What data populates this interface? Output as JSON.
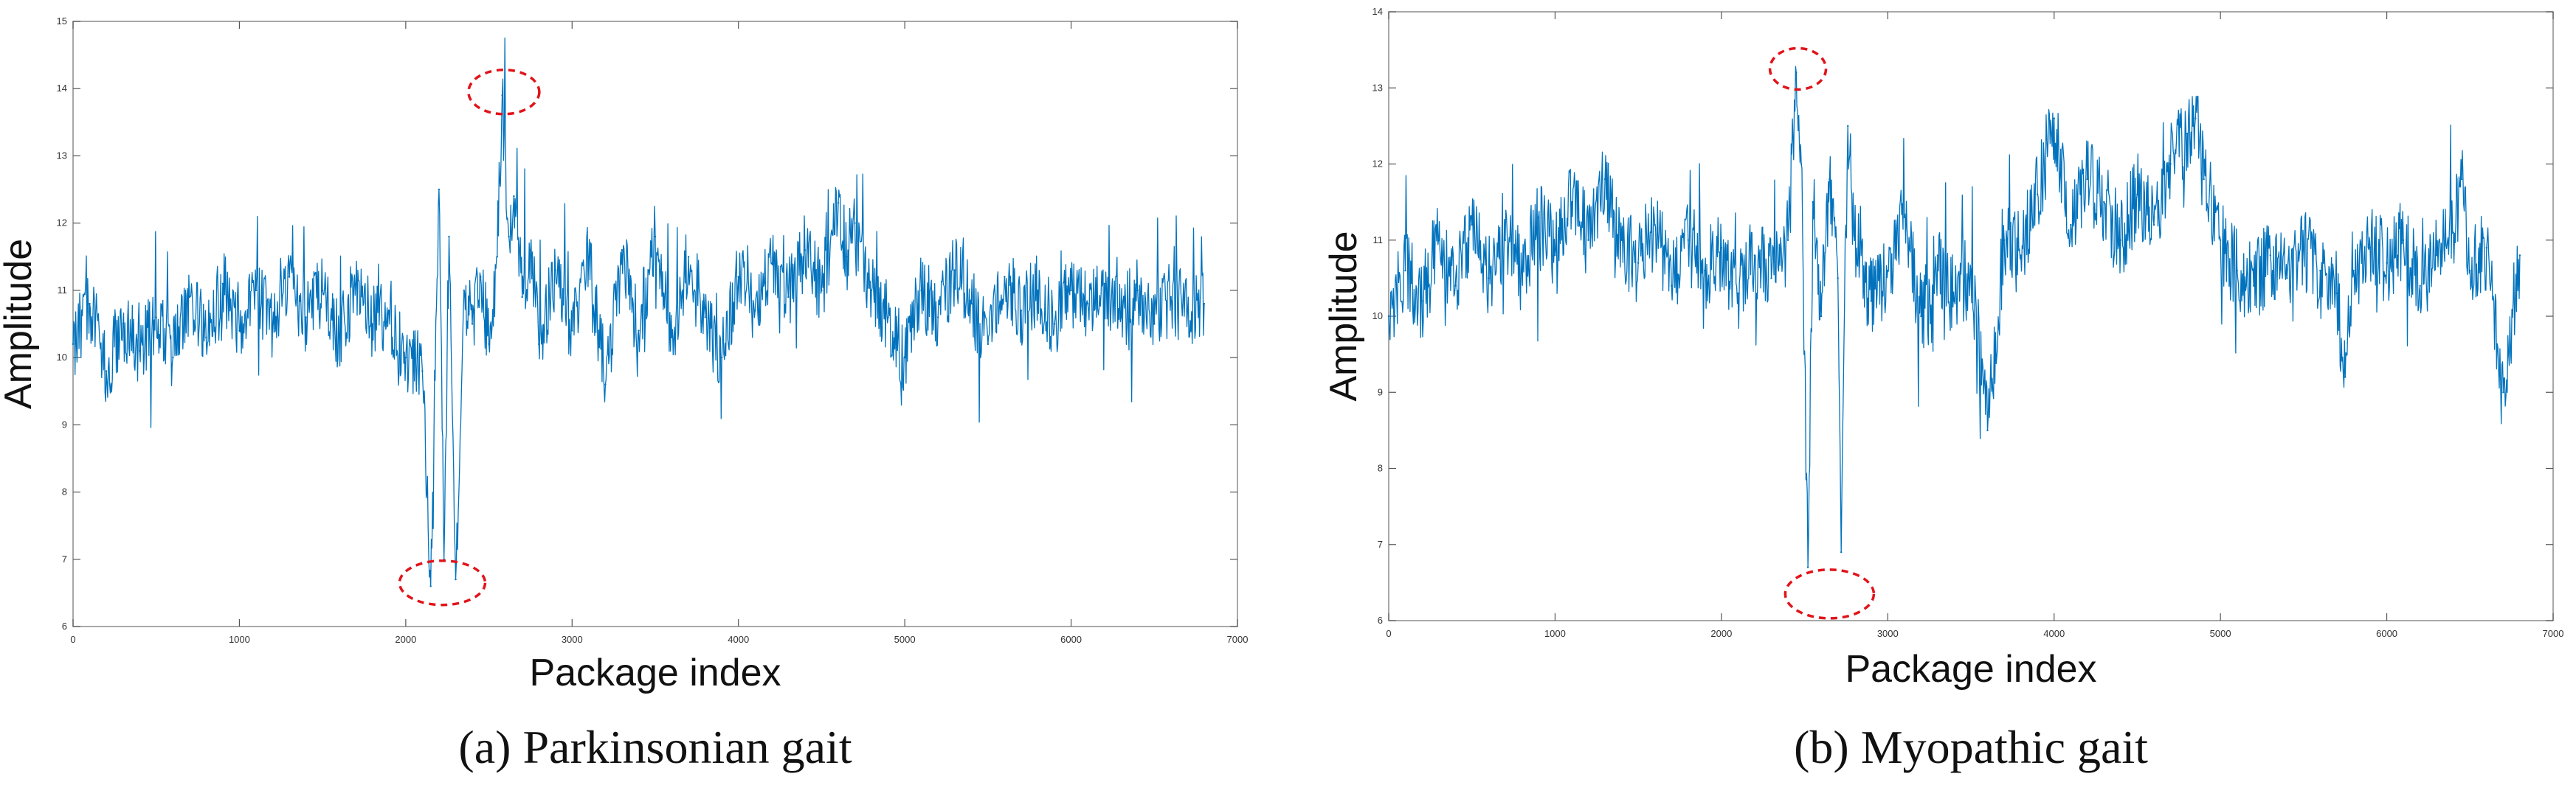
{
  "accent_color": "#0072BD",
  "marker_color": "#E0141A",
  "chart_data": [
    {
      "type": "line",
      "caption": "(a) Parkinsonian gait",
      "xlabel": "Package index",
      "ylabel": "Amplitude",
      "xlim": [
        0,
        7000
      ],
      "ylim": [
        6,
        15
      ],
      "xticks": [
        0,
        1000,
        2000,
        3000,
        4000,
        5000,
        6000,
        7000
      ],
      "yticks": [
        6,
        7,
        8,
        9,
        10,
        11,
        12,
        13,
        14,
        15
      ],
      "grid": false,
      "series": [
        {
          "color": "#0072BD",
          "x": [
            0,
            100,
            200,
            300,
            400,
            500,
            600,
            700,
            800,
            900,
            1000,
            1100,
            1200,
            1300,
            1400,
            1500,
            1600,
            1700,
            1800,
            1900,
            2000,
            2100,
            2150,
            2200,
            2230,
            2260,
            2300,
            2350,
            2400,
            2450,
            2500,
            2550,
            2580,
            2620,
            2650,
            2700,
            2750,
            2800,
            2900,
            3000,
            3100,
            3200,
            3300,
            3400,
            3500,
            3600,
            3700,
            3800,
            3900,
            4000,
            4100,
            4200,
            4300,
            4400,
            4500,
            4600,
            4650,
            4700,
            4800,
            4900,
            5000,
            5100,
            5200,
            5300,
            5400,
            5500,
            5600,
            5700,
            5800,
            5900,
            6000,
            6100,
            6200,
            6300,
            6400,
            6500,
            6600,
            6700,
            6800
          ],
          "y": [
            10.2,
            10.8,
            9.8,
            10.5,
            10.1,
            10.6,
            10.0,
            10.9,
            10.3,
            11.1,
            10.4,
            11.0,
            10.5,
            11.2,
            10.6,
            11.0,
            10.3,
            11.1,
            10.5,
            10.7,
            10.0,
            9.8,
            6.6,
            12.5,
            7.0,
            11.8,
            6.7,
            11.0,
            10.5,
            11.2,
            10.2,
            11.5,
            13.9,
            11.8,
            12.4,
            10.9,
            11.6,
            10.2,
            11.3,
            10.4,
            11.5,
            9.6,
            11.6,
            10.4,
            11.8,
            10.3,
            11.5,
            10.6,
            10.0,
            11.2,
            10.7,
            11.4,
            10.9,
            11.6,
            11.0,
            12.3,
            11.5,
            12.0,
            11.0,
            10.6,
            10.0,
            11.0,
            10.6,
            11.3,
            10.8,
            10.2,
            11.2,
            10.7,
            11.0,
            10.5,
            11.0,
            10.8,
            11.1,
            10.6,
            11.0,
            10.5,
            10.9,
            10.7,
            10.8
          ]
        }
      ]
    },
    {
      "type": "line",
      "caption": "(b) Myopathic gait",
      "xlabel": "Package index",
      "ylabel": "Amplitude",
      "xlim": [
        0,
        7000
      ],
      "ylim": [
        6,
        14
      ],
      "xticks": [
        0,
        1000,
        2000,
        3000,
        4000,
        5000,
        6000,
        7000
      ],
      "yticks": [
        6,
        7,
        8,
        9,
        10,
        11,
        12,
        13,
        14
      ],
      "grid": false,
      "series": [
        {
          "color": "#0072BD",
          "x": [
            0,
            100,
            200,
            300,
            400,
            500,
            600,
            700,
            800,
            900,
            1000,
            1100,
            1200,
            1300,
            1400,
            1500,
            1600,
            1700,
            1800,
            1900,
            2000,
            2100,
            2200,
            2300,
            2400,
            2450,
            2480,
            2520,
            2550,
            2600,
            2650,
            2700,
            2720,
            2760,
            2800,
            2900,
            3000,
            3100,
            3200,
            3300,
            3400,
            3500,
            3600,
            3700,
            3800,
            3900,
            4000,
            4100,
            4200,
            4300,
            4400,
            4500,
            4600,
            4700,
            4800,
            4850,
            4900,
            5000,
            5100,
            5200,
            5300,
            5400,
            5500,
            5600,
            5700,
            5750,
            5800,
            5900,
            6000,
            6100,
            6200,
            6300,
            6400,
            6450,
            6500,
            6600,
            6700,
            6800
          ],
          "y": [
            10.0,
            10.6,
            10.2,
            11.0,
            10.4,
            11.2,
            10.5,
            11.0,
            10.6,
            11.3,
            10.8,
            11.5,
            11.0,
            11.8,
            11.0,
            10.7,
            11.2,
            10.4,
            11.0,
            10.6,
            10.9,
            10.3,
            10.8,
            10.5,
            11.0,
            13.2,
            12.0,
            6.7,
            11.5,
            10.0,
            11.8,
            10.5,
            6.9,
            12.5,
            11.0,
            10.2,
            10.6,
            11.3,
            10.0,
            10.8,
            10.2,
            10.6,
            8.5,
            11.0,
            10.8,
            11.6,
            12.6,
            11.2,
            11.8,
            11.5,
            11.0,
            11.6,
            11.2,
            12.0,
            12.4,
            12.6,
            11.8,
            11.0,
            10.6,
            10.4,
            10.8,
            10.5,
            10.9,
            10.6,
            10.3,
            9.2,
            10.6,
            10.9,
            10.7,
            11.0,
            10.4,
            10.8,
            11.1,
            11.8,
            10.6,
            10.9,
            9.0,
            10.8
          ]
        }
      ]
    }
  ]
}
